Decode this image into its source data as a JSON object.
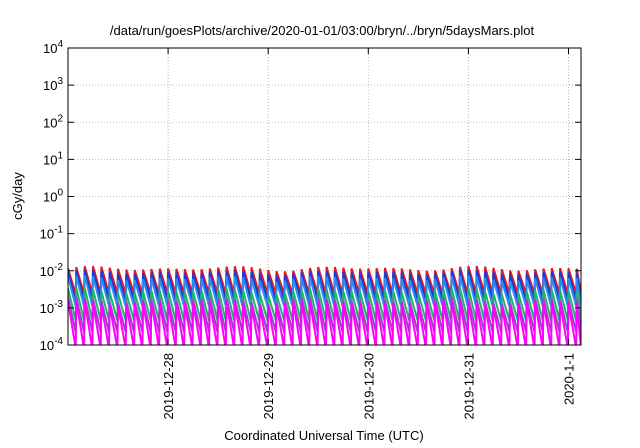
{
  "chart_data": {
    "type": "line",
    "title": "/data/run/goesPlots/archive/2020-01-01/03:00/bryn/../bryn/5daysMars.plot",
    "xlabel": "Coordinated Universal Time (UTC)",
    "ylabel": "cGy/day",
    "y_scale": "log",
    "ylim": [
      0.0001,
      10000
    ],
    "y_ticks": [
      {
        "base": "10",
        "exp": "-4"
      },
      {
        "base": "10",
        "exp": "-3"
      },
      {
        "base": "10",
        "exp": "-2"
      },
      {
        "base": "10",
        "exp": "-1"
      },
      {
        "base": "10",
        "exp": "0"
      },
      {
        "base": "10",
        "exp": "1"
      },
      {
        "base": "10",
        "exp": "2"
      },
      {
        "base": "10",
        "exp": "3"
      },
      {
        "base": "10",
        "exp": "4"
      }
    ],
    "x_ticks": [
      "2019-12-28",
      "2019-12-29",
      "2019-12-30",
      "2019-12-31",
      "2020-1-1"
    ],
    "x_range_days": [
      "2019-12-27 00:00",
      "2020-01-01 03:00"
    ],
    "grid": true,
    "colors": {
      "red": "#e41a1c",
      "blue": "#1f3bd6",
      "sky": "#2b8cf0",
      "green": "#22b36a",
      "purple": "#9b3fd3",
      "magenta": "#ff00ff"
    },
    "series": [
      {
        "color": "#e41a1c",
        "peak": [
          0.0095,
          0.0135
        ],
        "trough": 0.0024
      },
      {
        "color": "#1f3bd6",
        "peak": [
          0.0075,
          0.0105
        ],
        "trough": 0.0016
      },
      {
        "color": "#2b8cf0",
        "peak": [
          0.005,
          0.0075
        ],
        "trough": 0.0011
      },
      {
        "color": "#22b36a",
        "peak": [
          0.0022,
          0.0035
        ],
        "trough": 0.00045
      },
      {
        "color": "#9b3fd3",
        "peak": [
          0.0013,
          0.002
        ],
        "trough": 0.00022
      },
      {
        "color": "#ff00ff",
        "peak": [
          0.0011,
          0.0016
        ],
        "trough": 8e-05
      }
    ]
  }
}
